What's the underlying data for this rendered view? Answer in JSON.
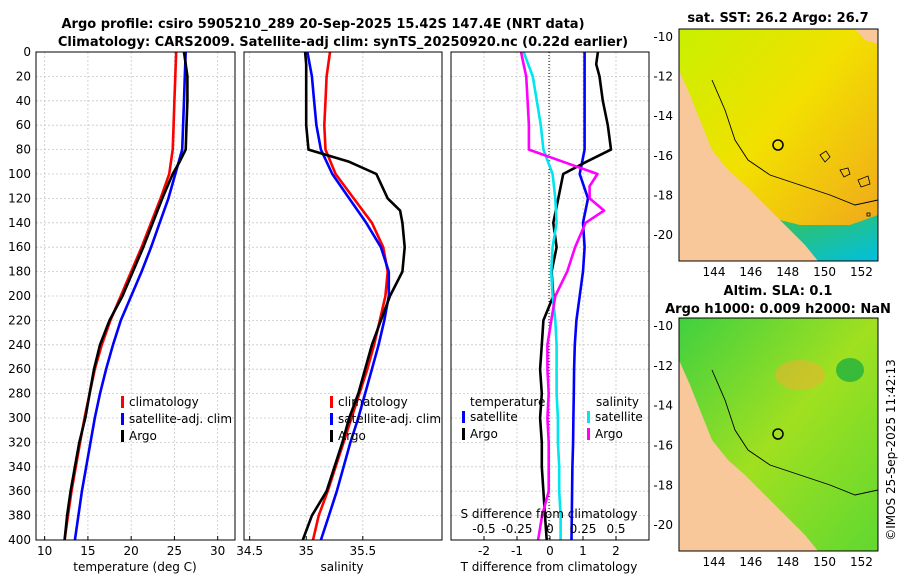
{
  "title_line1": "Argo profile: csiro 5905210_289 20-Sep-2025 15.42S 147.4E (NRT data)",
  "title_line2": "Climatology: CARS2009. Satellite-adj clim: synTS_20250920.nc (0.22d earlier)",
  "credit": "©IMOS 25-Sep-2025 11:42:13",
  "colors": {
    "climatology": "#ff0000",
    "satellite": "#0000ff",
    "argo": "#000000",
    "s_satellite": "#00e5ee",
    "s_argo": "#ff00ff",
    "land": "#f8c89a"
  },
  "depth_ticks": [
    "0",
    "20",
    "40",
    "60",
    "80",
    "100",
    "120",
    "140",
    "160",
    "180",
    "200",
    "220",
    "240",
    "260",
    "280",
    "300",
    "320",
    "340",
    "360",
    "380",
    "400"
  ],
  "chart_data": [
    {
      "type": "line",
      "name": "temperature",
      "xlabel": "temperature (deg C)",
      "xlim": [
        9,
        32
      ],
      "ylim": [
        400,
        0
      ],
      "xticks": [
        "10",
        "15",
        "20",
        "25",
        "30"
      ],
      "xtick_values": [
        10,
        15,
        20,
        25,
        30
      ],
      "legend": [
        "climatology",
        "satellite-adj. clim",
        "Argo"
      ],
      "series": [
        {
          "name": "climatology",
          "depth": [
            0,
            20,
            40,
            60,
            80,
            100,
            120,
            140,
            160,
            180,
            200,
            220,
            240,
            260,
            280,
            300,
            320,
            340,
            360,
            380,
            400
          ],
          "values": [
            25.2,
            25.1,
            25.0,
            24.9,
            24.8,
            24.4,
            23.4,
            22.3,
            21.2,
            20.0,
            18.8,
            17.6,
            16.6,
            15.8,
            15.2,
            14.6,
            14.1,
            13.6,
            13.1,
            12.7,
            12.3
          ]
        },
        {
          "name": "satellite-adj. clim",
          "depth": [
            0,
            20,
            40,
            60,
            80,
            100,
            120,
            140,
            160,
            180,
            200,
            220,
            240,
            260,
            280,
            300,
            320,
            340,
            360,
            380,
            400
          ],
          "values": [
            26.3,
            26.2,
            26.1,
            26.0,
            25.9,
            25.1,
            24.3,
            23.3,
            22.3,
            21.2,
            20.0,
            18.8,
            17.9,
            17.1,
            16.4,
            15.8,
            15.3,
            14.8,
            14.3,
            13.9,
            13.5
          ]
        },
        {
          "name": "Argo",
          "depth": [
            0,
            10,
            20,
            40,
            60,
            80,
            90,
            100,
            120,
            140,
            160,
            180,
            200,
            220,
            240,
            260,
            280,
            300,
            320,
            340,
            360,
            380,
            400
          ],
          "values": [
            26.1,
            26.3,
            26.5,
            26.5,
            26.4,
            26.3,
            25.6,
            24.8,
            23.6,
            22.5,
            21.4,
            20.2,
            19.0,
            17.5,
            16.4,
            15.7,
            15.2,
            14.7,
            14.0,
            13.5,
            13.0,
            12.6,
            12.3
          ]
        }
      ]
    },
    {
      "type": "line",
      "name": "salinity",
      "xlabel": "salinity",
      "xlim": [
        34.45,
        36.2
      ],
      "ylim": [
        400,
        0
      ],
      "xticks": [
        "34.5",
        "35",
        "35.5"
      ],
      "xtick_values": [
        34.5,
        35,
        35.5
      ],
      "legend": [
        "climatology",
        "satellite-adj. clim",
        "Argo"
      ],
      "series": [
        {
          "name": "climatology",
          "depth": [
            0,
            20,
            40,
            60,
            80,
            100,
            120,
            140,
            160,
            180,
            200,
            220,
            240,
            260,
            280,
            300,
            320,
            340,
            360,
            380,
            400
          ],
          "values": [
            35.21,
            35.18,
            35.17,
            35.16,
            35.17,
            35.26,
            35.42,
            35.58,
            35.68,
            35.72,
            35.7,
            35.65,
            35.6,
            35.54,
            35.47,
            35.4,
            35.33,
            35.26,
            35.19,
            35.11,
            35.06
          ]
        },
        {
          "name": "satellite-adj. clim",
          "depth": [
            0,
            20,
            40,
            60,
            80,
            100,
            120,
            140,
            160,
            180,
            200,
            220,
            240,
            260,
            280,
            300,
            320,
            340,
            360,
            380,
            400
          ],
          "values": [
            35.01,
            35.05,
            35.07,
            35.09,
            35.13,
            35.23,
            35.38,
            35.53,
            35.66,
            35.73,
            35.73,
            35.69,
            35.64,
            35.58,
            35.52,
            35.46,
            35.39,
            35.33,
            35.27,
            35.2,
            35.13
          ]
        },
        {
          "name": "Argo",
          "depth": [
            0,
            10,
            20,
            40,
            60,
            80,
            90,
            100,
            110,
            120,
            130,
            140,
            160,
            180,
            200,
            220,
            240,
            260,
            280,
            300,
            320,
            340,
            360,
            380,
            400
          ],
          "values": [
            34.99,
            35.0,
            35.0,
            35.0,
            35.0,
            35.02,
            35.38,
            35.62,
            35.67,
            35.72,
            35.83,
            35.85,
            35.87,
            35.85,
            35.74,
            35.66,
            35.58,
            35.52,
            35.46,
            35.38,
            35.32,
            35.25,
            35.18,
            35.05,
            34.97
          ]
        }
      ]
    },
    {
      "type": "line",
      "name": "difference from climatology",
      "xlabel": "T difference from climatology",
      "xlabel_top": "S difference from climatology",
      "xlim": [
        -3,
        3
      ],
      "ylim": [
        400,
        0
      ],
      "xticks": [
        "-2",
        "-1",
        "0",
        "1",
        "2"
      ],
      "xtick_values": [
        -2,
        -1,
        0,
        1,
        2
      ],
      "s_xticks": [
        "-0.5",
        "-0.25",
        "0",
        "0.25",
        "0.5"
      ],
      "legend_temperature_heading": "temperature",
      "legend_salinity_heading": "salinity",
      "legend": [
        "satellite",
        "Argo",
        "satellite",
        "Argo"
      ],
      "series": [
        {
          "name": "T satellite",
          "depth": [
            0,
            20,
            40,
            60,
            80,
            100,
            120,
            140,
            160,
            180,
            200,
            220,
            240,
            260,
            280,
            300,
            320,
            340,
            360,
            380,
            400
          ],
          "values": [
            1.05,
            1.05,
            1.05,
            1.05,
            1.05,
            0.9,
            1.15,
            1.0,
            1.05,
            1.0,
            0.9,
            0.8,
            0.75,
            0.73,
            0.72,
            0.71,
            0.7,
            0.68,
            0.67,
            0.66,
            0.65
          ]
        },
        {
          "name": "T Argo",
          "depth": [
            0,
            10,
            20,
            40,
            60,
            80,
            90,
            100,
            120,
            140,
            160,
            180,
            200,
            220,
            240,
            260,
            280,
            300,
            320,
            340,
            360,
            380,
            400
          ],
          "values": [
            1.45,
            1.4,
            1.5,
            1.6,
            1.75,
            1.85,
            1.1,
            0.4,
            0.25,
            0.1,
            0.2,
            0.05,
            0.1,
            -0.2,
            -0.25,
            -0.3,
            -0.25,
            -0.3,
            -0.25,
            -0.25,
            -0.2,
            -0.15,
            -0.1
          ]
        },
        {
          "name": "S satellite",
          "depth": [
            0,
            20,
            40,
            60,
            80,
            100,
            120,
            140,
            160,
            180,
            200,
            220,
            240,
            260,
            280,
            300,
            320,
            340,
            360,
            380,
            400
          ],
          "values": [
            -0.2,
            -0.13,
            -0.1,
            -0.07,
            -0.05,
            0.02,
            0.04,
            0.05,
            0.02,
            0.01,
            0.02,
            0.04,
            0.05,
            0.05,
            0.05,
            0.06,
            0.06,
            0.07,
            0.07,
            0.08,
            0.08
          ]
        },
        {
          "name": "S Argo",
          "depth": [
            0,
            10,
            20,
            40,
            60,
            80,
            90,
            100,
            110,
            120,
            130,
            140,
            160,
            180,
            200,
            220,
            240,
            260,
            280,
            300,
            320,
            340,
            360,
            380,
            400
          ],
          "values": [
            -0.22,
            -0.2,
            -0.18,
            -0.17,
            -0.16,
            -0.16,
            0.1,
            0.36,
            0.3,
            0.3,
            0.41,
            0.27,
            0.19,
            0.13,
            0.04,
            0.01,
            -0.02,
            -0.02,
            -0.01,
            -0.02,
            -0.01,
            -0.01,
            -0.01,
            -0.06,
            -0.09
          ]
        }
      ]
    }
  ],
  "maps": [
    {
      "title": "sat. SST: 26.2 Argo: 26.7",
      "lat_ticks": [
        "-10",
        "-12",
        "-14",
        "-16",
        "-18",
        "-20"
      ],
      "lon_ticks": [
        "144",
        "146",
        "148",
        "150",
        "152"
      ]
    },
    {
      "title_line1": "Altim. SLA: 0.1",
      "title_line2": "Argo h1000: 0.009 h2000: NaN",
      "lat_ticks": [
        "-10",
        "-12",
        "-14",
        "-16",
        "-18",
        "-20"
      ],
      "lon_ticks": [
        "144",
        "146",
        "148",
        "150",
        "152"
      ]
    }
  ]
}
